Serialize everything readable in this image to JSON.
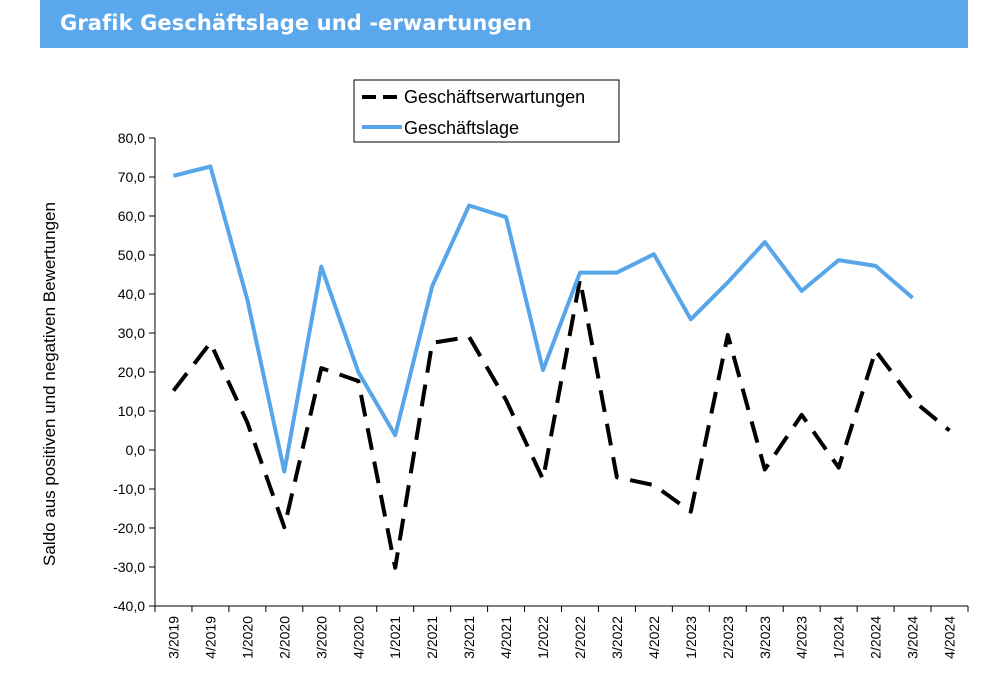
{
  "title": "Grafik Geschäftslage und -erwartungen",
  "colors": {
    "banner": "#5aa7eb",
    "lage": "#58a6ea",
    "erwartungen": "#000000"
  },
  "chart_data": {
    "type": "line",
    "title": "",
    "xlabel": "",
    "ylabel": "Saldo aus positiven und negativen Bewertungen",
    "ylim": [
      -40,
      80
    ],
    "ytick_step": 10,
    "yticks": [
      "80,0",
      "70,0",
      "60,0",
      "50,0",
      "40,0",
      "30,0",
      "20,0",
      "10,0",
      "0,0",
      "-10,0",
      "-20,0",
      "-30,0",
      "-40,0"
    ],
    "categories": [
      "3/2019",
      "4/2019",
      "1/2020",
      "2/2020",
      "3/2020",
      "4/2020",
      "1/2021",
      "2/2021",
      "3/2021",
      "4/2021",
      "1/2022",
      "2/2022",
      "3/2022",
      "4/2022",
      "1/2023",
      "2/2023",
      "3/2023",
      "4/2023",
      "1/2024",
      "2/2024",
      "3/2024",
      "4/2024"
    ],
    "grid": false,
    "legend": "top-center",
    "series": [
      {
        "name": "Geschäftserwartungen",
        "style": "dashed",
        "color": "#000000",
        "values": [
          15.2,
          27.5,
          7.0,
          -19.8,
          21.0,
          17.7,
          -30.2,
          27.5,
          29.0,
          12.8,
          -7.5,
          43.7,
          -7.0,
          -9.0,
          -15.8,
          29.5,
          -5.0,
          9.0,
          -4.5,
          25.5,
          12.8,
          5.0
        ]
      },
      {
        "name": "Geschäftslage",
        "style": "solid",
        "color": "#58a6ea",
        "values": [
          70.3,
          72.7,
          38.5,
          -5.5,
          47.0,
          20.0,
          3.8,
          42.0,
          62.7,
          59.7,
          20.5,
          45.5,
          45.5,
          50.2,
          33.5,
          43.0,
          53.3,
          40.8,
          48.7,
          47.2,
          39.0,
          null
        ]
      }
    ]
  }
}
